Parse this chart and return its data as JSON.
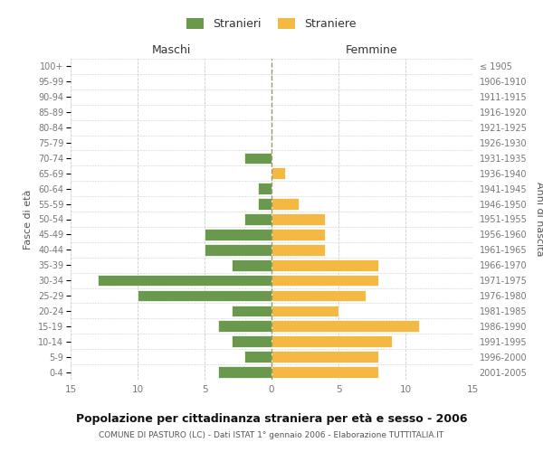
{
  "age_groups": [
    "0-4",
    "5-9",
    "10-14",
    "15-19",
    "20-24",
    "25-29",
    "30-34",
    "35-39",
    "40-44",
    "45-49",
    "50-54",
    "55-59",
    "60-64",
    "65-69",
    "70-74",
    "75-79",
    "80-84",
    "85-89",
    "90-94",
    "95-99",
    "100+"
  ],
  "birth_years": [
    "2001-2005",
    "1996-2000",
    "1991-1995",
    "1986-1990",
    "1981-1985",
    "1976-1980",
    "1971-1975",
    "1966-1970",
    "1961-1965",
    "1956-1960",
    "1951-1955",
    "1946-1950",
    "1941-1945",
    "1936-1940",
    "1931-1935",
    "1926-1930",
    "1921-1925",
    "1916-1920",
    "1911-1915",
    "1906-1910",
    "≤ 1905"
  ],
  "maschi": [
    4,
    2,
    3,
    4,
    3,
    10,
    13,
    3,
    5,
    5,
    2,
    1,
    1,
    0,
    2,
    0,
    0,
    0,
    0,
    0,
    0
  ],
  "femmine": [
    8,
    8,
    9,
    11,
    5,
    7,
    8,
    8,
    4,
    4,
    4,
    2,
    0,
    1,
    0,
    0,
    0,
    0,
    0,
    0,
    0
  ],
  "male_color": "#6a994e",
  "female_color": "#f4b942",
  "bg_color": "#ffffff",
  "grid_color": "#cccccc",
  "centerline_color": "#999966",
  "axis_label_color": "#555555",
  "tick_label_color": "#777777",
  "title": "Popolazione per cittadinanza straniera per età e sesso - 2006",
  "subtitle": "COMUNE DI PASTURO (LC) - Dati ISTAT 1° gennaio 2006 - Elaborazione TUTTITALIA.IT",
  "xlabel_left": "Maschi",
  "xlabel_right": "Femmine",
  "ylabel_left": "Fasce di età",
  "ylabel_right": "Anni di nascita",
  "xlim": 15,
  "xticks": [
    -15,
    -10,
    -5,
    0,
    5,
    10,
    15
  ],
  "legend_stranieri": "Stranieri",
  "legend_straniere": "Straniere"
}
